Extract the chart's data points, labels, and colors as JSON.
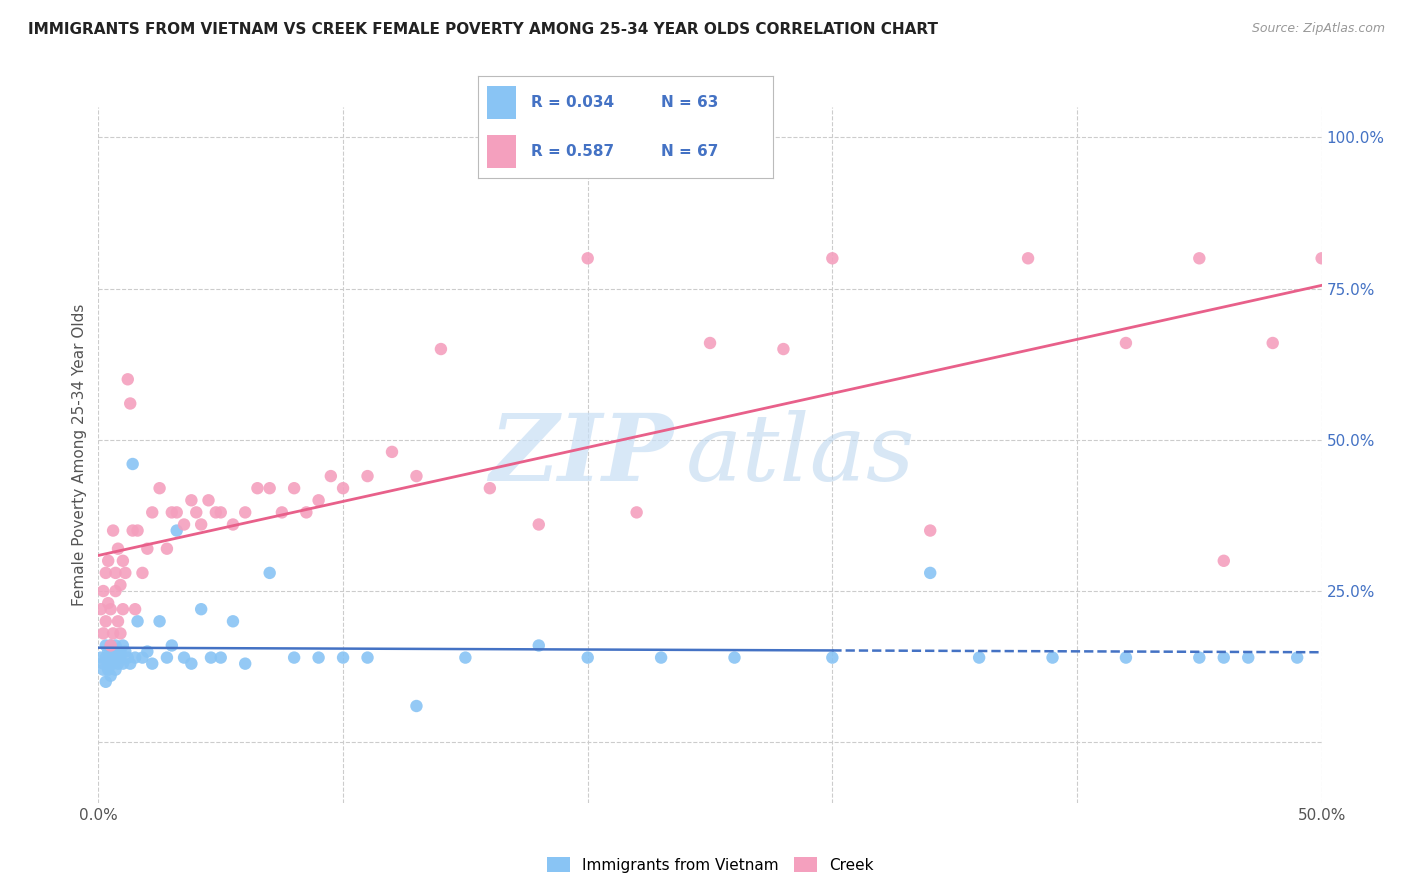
{
  "title": "IMMIGRANTS FROM VIETNAM VS CREEK FEMALE POVERTY AMONG 25-34 YEAR OLDS CORRELATION CHART",
  "source": "Source: ZipAtlas.com",
  "ylabel": "Female Poverty Among 25-34 Year Olds",
  "xlim": [
    0.0,
    0.5
  ],
  "ylim": [
    -0.1,
    1.05
  ],
  "color_vietnam": "#89C4F4",
  "color_creek": "#F4A0BE",
  "line_color_vietnam": "#4472C4",
  "line_color_creek": "#E8608A",
  "R_vietnam": 0.034,
  "N_vietnam": 63,
  "R_creek": 0.587,
  "N_creek": 67,
  "legend_label_vietnam": "Immigrants from Vietnam",
  "legend_label_creek": "Creek",
  "watermark_zip": "ZIP",
  "watermark_atlas": "atlas",
  "background_color": "#FFFFFF",
  "grid_color": "#CCCCCC",
  "scatter_size": 80,
  "vietnam_x": [
    0.001,
    0.002,
    0.002,
    0.003,
    0.003,
    0.003,
    0.004,
    0.004,
    0.004,
    0.005,
    0.005,
    0.005,
    0.006,
    0.006,
    0.007,
    0.007,
    0.007,
    0.008,
    0.008,
    0.009,
    0.009,
    0.01,
    0.01,
    0.011,
    0.012,
    0.013,
    0.014,
    0.015,
    0.016,
    0.018,
    0.02,
    0.022,
    0.025,
    0.028,
    0.03,
    0.032,
    0.035,
    0.038,
    0.042,
    0.046,
    0.05,
    0.055,
    0.06,
    0.07,
    0.08,
    0.09,
    0.1,
    0.11,
    0.13,
    0.15,
    0.18,
    0.2,
    0.23,
    0.26,
    0.3,
    0.34,
    0.36,
    0.39,
    0.42,
    0.45,
    0.46,
    0.47,
    0.49
  ],
  "vietnam_y": [
    0.14,
    0.13,
    0.12,
    0.14,
    0.1,
    0.16,
    0.13,
    0.15,
    0.12,
    0.14,
    0.11,
    0.16,
    0.13,
    0.15,
    0.14,
    0.12,
    0.16,
    0.14,
    0.13,
    0.15,
    0.14,
    0.13,
    0.16,
    0.15,
    0.14,
    0.13,
    0.46,
    0.14,
    0.2,
    0.14,
    0.15,
    0.13,
    0.2,
    0.14,
    0.16,
    0.35,
    0.14,
    0.13,
    0.22,
    0.14,
    0.14,
    0.2,
    0.13,
    0.28,
    0.14,
    0.14,
    0.14,
    0.14,
    0.06,
    0.14,
    0.16,
    0.14,
    0.14,
    0.14,
    0.14,
    0.28,
    0.14,
    0.14,
    0.14,
    0.14,
    0.14,
    0.14,
    0.14
  ],
  "creek_x": [
    0.001,
    0.002,
    0.002,
    0.003,
    0.003,
    0.004,
    0.004,
    0.005,
    0.005,
    0.006,
    0.006,
    0.007,
    0.007,
    0.008,
    0.008,
    0.009,
    0.009,
    0.01,
    0.01,
    0.011,
    0.012,
    0.013,
    0.014,
    0.015,
    0.016,
    0.018,
    0.02,
    0.022,
    0.025,
    0.028,
    0.03,
    0.032,
    0.035,
    0.038,
    0.04,
    0.042,
    0.045,
    0.048,
    0.05,
    0.055,
    0.06,
    0.065,
    0.07,
    0.075,
    0.08,
    0.085,
    0.09,
    0.095,
    0.1,
    0.11,
    0.12,
    0.13,
    0.14,
    0.16,
    0.18,
    0.2,
    0.22,
    0.25,
    0.28,
    0.3,
    0.34,
    0.38,
    0.42,
    0.45,
    0.46,
    0.48,
    0.5
  ],
  "creek_y": [
    0.22,
    0.18,
    0.25,
    0.2,
    0.28,
    0.23,
    0.3,
    0.16,
    0.22,
    0.35,
    0.18,
    0.25,
    0.28,
    0.2,
    0.32,
    0.18,
    0.26,
    0.22,
    0.3,
    0.28,
    0.6,
    0.56,
    0.35,
    0.22,
    0.35,
    0.28,
    0.32,
    0.38,
    0.42,
    0.32,
    0.38,
    0.38,
    0.36,
    0.4,
    0.38,
    0.36,
    0.4,
    0.38,
    0.38,
    0.36,
    0.38,
    0.42,
    0.42,
    0.38,
    0.42,
    0.38,
    0.4,
    0.44,
    0.42,
    0.44,
    0.48,
    0.44,
    0.65,
    0.42,
    0.36,
    0.8,
    0.38,
    0.66,
    0.65,
    0.8,
    0.35,
    0.8,
    0.66,
    0.8,
    0.3,
    0.66,
    0.8
  ]
}
